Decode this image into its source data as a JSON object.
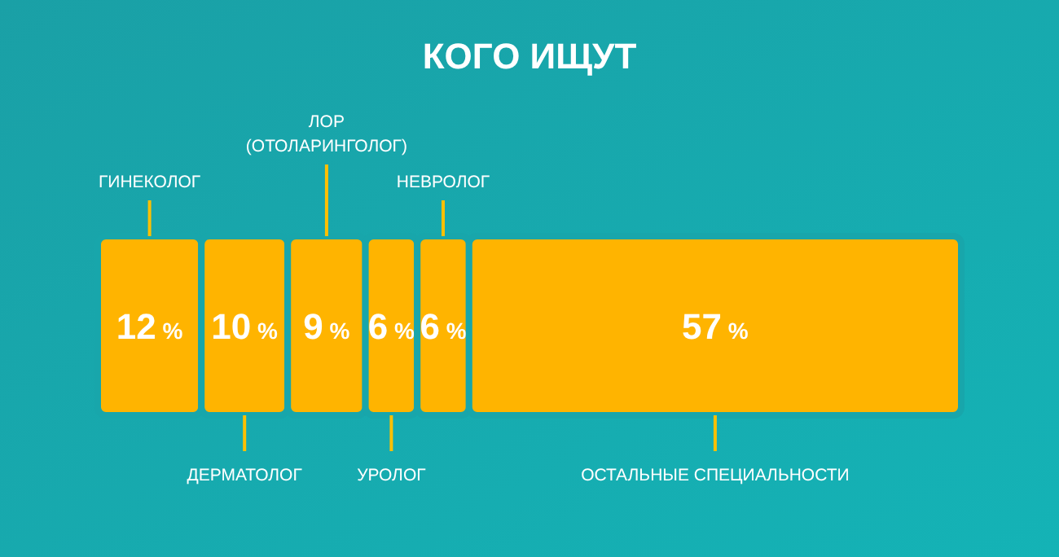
{
  "chart_data": {
    "type": "bar",
    "title": "КОГО ИЩУТ",
    "orientation": "horizontal",
    "stacked": true,
    "categories": [
      null
    ],
    "series": [
      {
        "name": "ГИНЕКОЛОГ",
        "color": "#ffb400",
        "values": [
          12
        ],
        "value_labels": [
          "12 %"
        ]
      },
      {
        "name": "ДЕРМАТОЛОГ",
        "color": "#ffb400",
        "values": [
          10
        ],
        "value_labels": [
          "10 %"
        ]
      },
      {
        "name": "ЛОР (ОТОЛАРИНГОЛОГ)",
        "color": "#ffb400",
        "values": [
          9
        ],
        "value_labels": [
          "9 %"
        ]
      },
      {
        "name": "УРОЛОГ",
        "color": "#ffb400",
        "values": [
          6
        ],
        "value_labels": [
          "6 %"
        ]
      },
      {
        "name": "НЕВРОЛОГ",
        "color": "#ffb400",
        "values": [
          6
        ],
        "value_labels": [
          "6 %"
        ]
      },
      {
        "name": "ОСТАЛЬНЫЕ СПЕЦИАЛЬНОСТИ",
        "color": "#ffb400",
        "values": [
          57
        ],
        "value_labels": [
          "57 %"
        ]
      }
    ]
  }
}
